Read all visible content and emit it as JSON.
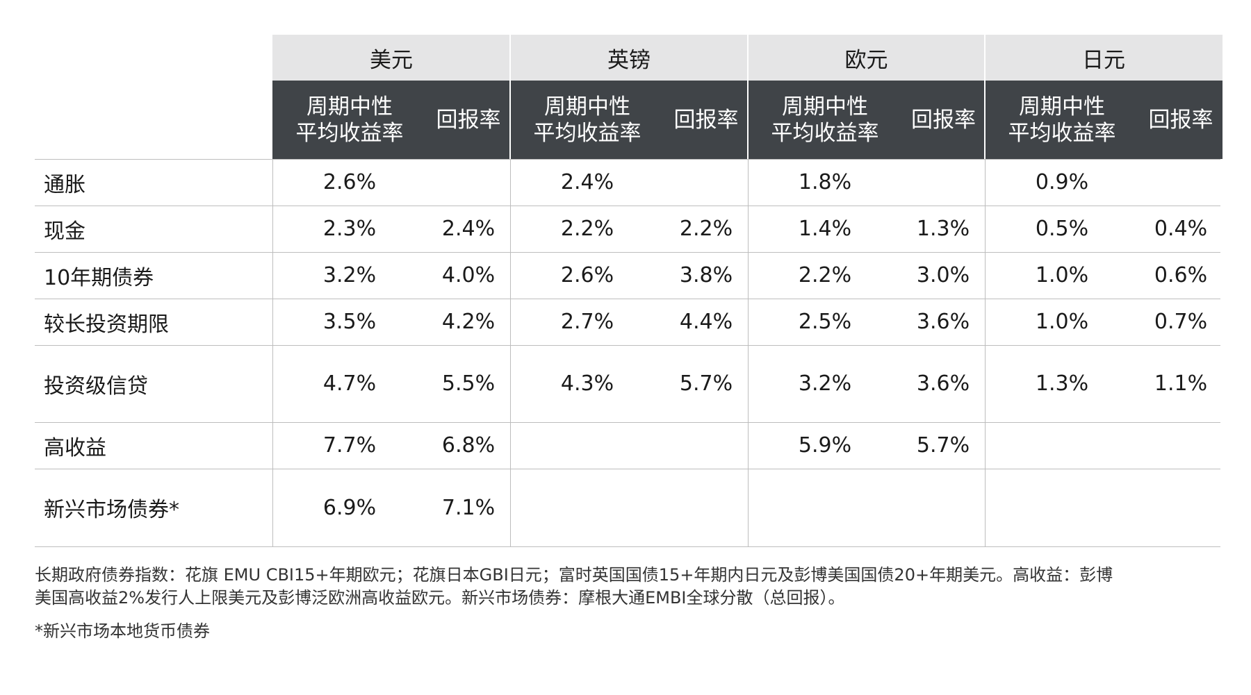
{
  "currencies": [
    "美元",
    "英镑",
    "欧元",
    "日元"
  ],
  "sub_headers": {
    "avg_yield_line1": "周期中性",
    "avg_yield_line2": "平均收益率",
    "return": "回报率"
  },
  "rows": [
    {
      "label": "通胀",
      "values": [
        "2.6%",
        "",
        "2.4%",
        "",
        "1.8%",
        "",
        "0.9%",
        ""
      ]
    },
    {
      "label": "现金",
      "values": [
        "2.3%",
        "2.4%",
        "2.2%",
        "2.2%",
        "1.4%",
        "1.3%",
        "0.5%",
        "0.4%"
      ]
    },
    {
      "label": "10年期债券",
      "values": [
        "3.2%",
        "4.0%",
        "2.6%",
        "3.8%",
        "2.2%",
        "3.0%",
        "1.0%",
        "0.6%"
      ]
    },
    {
      "label": "较长投资期限",
      "values": [
        "3.5%",
        "4.2%",
        "2.7%",
        "4.4%",
        "2.5%",
        "3.6%",
        "1.0%",
        "0.7%"
      ]
    },
    {
      "label": "投资级信贷",
      "values": [
        "4.7%",
        "5.5%",
        "4.3%",
        "5.7%",
        "3.2%",
        "3.6%",
        "1.3%",
        "1.1%"
      ]
    },
    {
      "label": "高收益",
      "values": [
        "7.7%",
        "6.8%",
        "",
        "",
        "5.9%",
        "5.7%",
        "",
        ""
      ]
    },
    {
      "label": "新兴市场债券*",
      "values": [
        "6.9%",
        "7.1%",
        "",
        "",
        "",
        "",
        "",
        ""
      ]
    }
  ],
  "notes": {
    "line1": "长期政府债券指数：花旗 EMU CBI15+年期欧元；花旗日本GBI日元；富时英国国债15+年期内日元及彭博美国国债20+年期美元。高收益：彭博",
    "line2": "美国高收益2%发行人上限美元及彭博泛欧洲高收益欧元。新兴市场债券：摩根大通EMBI全球分散（总回报）。",
    "footnote": "*新兴市场本地货币债券"
  }
}
